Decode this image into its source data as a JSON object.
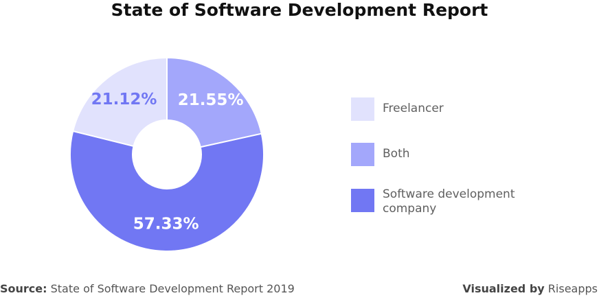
{
  "title": "State of Software Development Report",
  "chart_data": {
    "type": "pie",
    "title": "State of Software Development Report",
    "slices": [
      {
        "name": "Both",
        "value": 21.55,
        "label": "21.55%",
        "color": "#a3a7fb"
      },
      {
        "name": "Software development company",
        "value": 57.33,
        "label": "57.33%",
        "color": "#7177f3"
      },
      {
        "name": "Freelancer",
        "value": 21.12,
        "label": "21.12%",
        "color": "#e1e2fd"
      }
    ],
    "legend_position": "right"
  },
  "legend": [
    {
      "label": "Freelancer",
      "color": "#e1e2fd"
    },
    {
      "label": "Both",
      "color": "#a3a7fb"
    },
    {
      "label": "Software development company",
      "color": "#7177f3"
    }
  ],
  "footer": {
    "source_prefix": "Source:",
    "source_text": "State of Software Development Report 2019",
    "visualized_prefix": "Visualized by",
    "visualized_text": "Riseapps"
  }
}
